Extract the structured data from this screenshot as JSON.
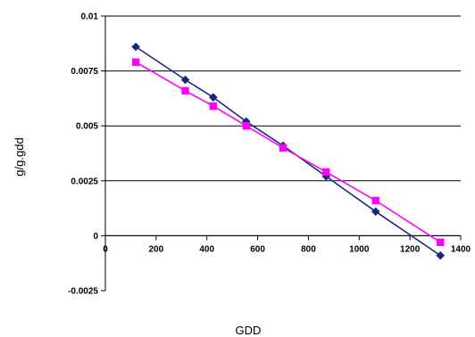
{
  "chart_data": {
    "type": "line",
    "title": "",
    "xlabel": "GDD",
    "ylabel": "g/g.gdd",
    "xlim": [
      0,
      1400
    ],
    "ylim": [
      -0.0025,
      0.01
    ],
    "x_ticks": [
      0,
      200,
      400,
      600,
      800,
      1000,
      1200,
      1400
    ],
    "x_tick_labels": [
      "0",
      "200",
      "400",
      "600",
      "800",
      "1000",
      "1200",
      "1400"
    ],
    "y_ticks": [
      -0.0025,
      0,
      0.0025,
      0.005,
      0.0075,
      0.01
    ],
    "y_tick_labels": [
      "-0.0025",
      "0",
      "0.0025",
      "0.005",
      "0.0075",
      "0.01"
    ],
    "horizontal_grid": true,
    "legend": "none",
    "series": [
      {
        "marker": "diamond",
        "color": "#1a2a7a",
        "x": [
          120,
          315,
          425,
          555,
          700,
          870,
          1065,
          1320
        ],
        "y": [
          0.0086,
          0.0071,
          0.0063,
          0.0052,
          0.0041,
          0.0027,
          0.0011,
          -0.0009
        ]
      },
      {
        "marker": "square",
        "color": "#ff00ff",
        "x": [
          120,
          315,
          425,
          555,
          700,
          870,
          1065,
          1320
        ],
        "y": [
          0.0079,
          0.0066,
          0.0059,
          0.005,
          0.004,
          0.0029,
          0.0016,
          -0.0003
        ]
      }
    ]
  }
}
